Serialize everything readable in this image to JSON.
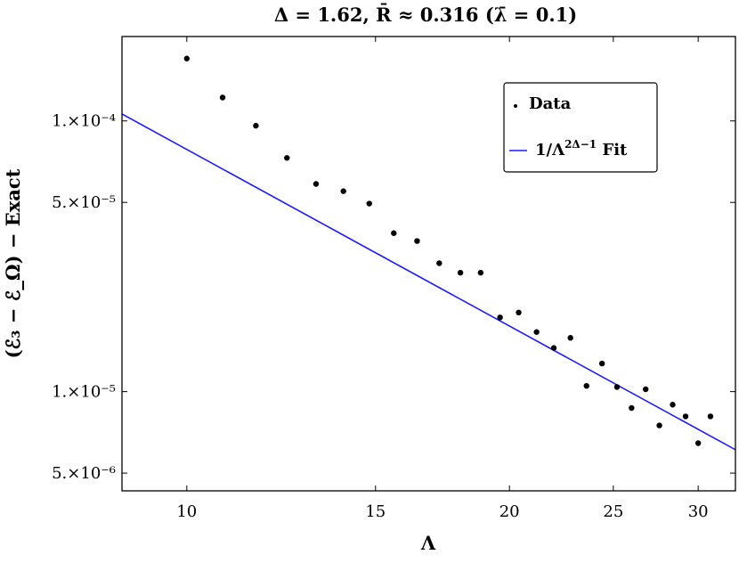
{
  "chart_data": {
    "type": "scatter",
    "title": "Δ = 1.62, R̄ ≈ 0.316 (λ̄ = 0.1)",
    "xlabel": "Λ",
    "ylabel": "(ℰ₃ − ℰ_Ω) − Exact",
    "x_scale": "log",
    "y_scale": "log",
    "xlim": [
      8.7,
      32.5
    ],
    "ylim": [
      4.3e-06,
      0.000205
    ],
    "x_ticks": [
      10,
      15,
      20,
      25,
      30
    ],
    "x_tick_labels": [
      "10",
      "15",
      "20",
      "25",
      "30"
    ],
    "y_ticks": [
      5e-06,
      1e-05,
      5e-05,
      0.0001
    ],
    "y_tick_labels": [
      "5.×10⁻⁶",
      "1.×10⁻⁵",
      "5.×10⁻⁵",
      "1.×10⁻⁴"
    ],
    "grid": false,
    "legend_position": "top-right",
    "colors": {
      "data": "#000000",
      "fit": "#1a1aff",
      "frame": "#000000"
    },
    "series": [
      {
        "name": "Data",
        "kind": "points",
        "x": [
          10.0,
          10.8,
          11.6,
          12.4,
          13.2,
          14.0,
          14.8,
          15.6,
          16.4,
          17.2,
          18.0,
          18.8,
          19.6,
          20.4,
          21.2,
          22.0,
          22.8,
          23.6,
          24.4,
          25.2,
          26.0,
          26.8,
          27.6,
          28.4,
          29.2,
          30.0,
          30.8
        ],
        "y": [
          0.00017,
          0.000122,
          9.6e-05,
          7.3e-05,
          5.85e-05,
          5.5e-05,
          4.95e-05,
          3.85e-05,
          3.6e-05,
          2.98e-05,
          2.75e-05,
          2.75e-05,
          1.88e-05,
          1.96e-05,
          1.66e-05,
          1.45e-05,
          1.58e-05,
          1.05e-05,
          1.27e-05,
          1.04e-05,
          8.7e-06,
          1.02e-05,
          7.5e-06,
          8.95e-06,
          8.1e-06,
          6.45e-06,
          8.1e-06
        ]
      },
      {
        "name": "1/Λ^{2Δ−1} Fit",
        "kind": "line",
        "x": [
          8.7,
          32.5
        ],
        "y": [
          0.0001061,
          6.1e-06
        ]
      }
    ]
  },
  "legend": {
    "data_label": "Data",
    "fit_label_main": "1/Λ",
    "fit_label_sup": "2Δ−1",
    "fit_label_tail": " Fit"
  }
}
